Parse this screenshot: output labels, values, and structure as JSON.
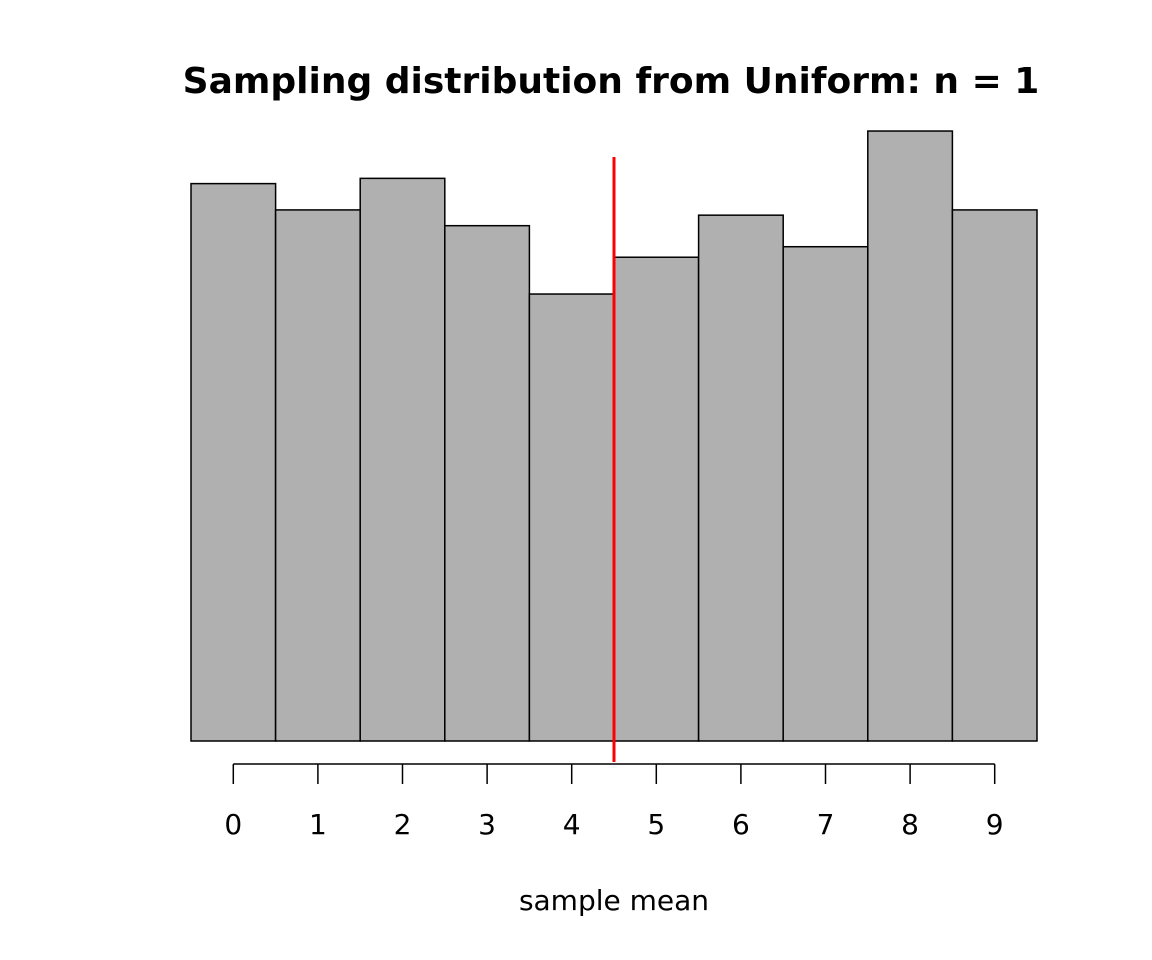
{
  "chart_data": {
    "type": "bar",
    "title": "Sampling distribution from Uniform: n = 1",
    "xlabel": "sample mean",
    "ylabel": "",
    "categories": [
      "0",
      "1",
      "2",
      "3",
      "4",
      "5",
      "6",
      "7",
      "8",
      "9"
    ],
    "x": [
      0,
      1,
      2,
      3,
      4,
      5,
      6,
      7,
      8,
      9
    ],
    "values": [
      1060,
      1010,
      1070,
      980,
      850,
      920,
      1000,
      940,
      1160,
      1010
    ],
    "ylim": [
      0,
      1200
    ],
    "xlim": [
      -0.5,
      9.5
    ],
    "bar_color": "#b0b0b0",
    "mean_line": {
      "value": 4.5,
      "color": "#ff0000"
    },
    "grid": false,
    "y_axis_shown": false
  }
}
